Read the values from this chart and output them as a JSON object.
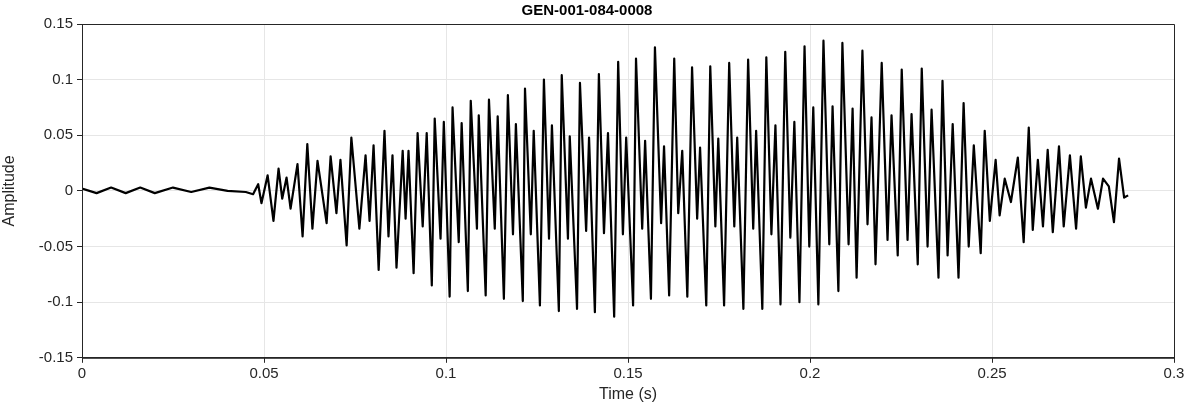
{
  "chart_data": {
    "type": "line",
    "title": "GEN-001-084-0008",
    "xlabel": "Time (s)",
    "ylabel": "Amplitude",
    "xlim": [
      0,
      0.3
    ],
    "xticks": [
      0,
      0.05,
      0.1,
      0.15,
      0.2,
      0.25,
      0.3
    ],
    "ylim": [
      -0.15,
      0.15
    ],
    "yticks": [
      -0.15,
      -0.1,
      -0.05,
      0,
      0.05,
      0.1,
      0.15
    ],
    "grid": true,
    "legend": false,
    "marker": "none",
    "line_style": "solid",
    "series": [
      {
        "color": "#000000",
        "x": [
          0,
          0.004,
          0.008,
          0.012,
          0.016,
          0.02,
          0.025,
          0.03,
          0.035,
          0.04,
          0.045,
          0.047,
          0.0484,
          0.0493,
          0.051,
          0.0526,
          0.054,
          0.055,
          0.0562,
          0.0573,
          0.0592,
          0.0606,
          0.0619,
          0.0633,
          0.0647,
          0.0672,
          0.0683,
          0.0699,
          0.071,
          0.0727,
          0.074,
          0.0762,
          0.0779,
          0.079,
          0.0801,
          0.0815,
          0.0831,
          0.0842,
          0.0853,
          0.0864,
          0.0881,
          0.0889,
          0.0897,
          0.0911,
          0.0922,
          0.0936,
          0.0947,
          0.0961,
          0.0969,
          0.0985,
          0.0994,
          0.101,
          0.1018,
          0.1035,
          0.1043,
          0.106,
          0.1068,
          0.1085,
          0.109,
          0.1109,
          0.1118,
          0.1134,
          0.1142,
          0.1159,
          0.117,
          0.1184,
          0.1192,
          0.1211,
          0.1217,
          0.1233,
          0.1241,
          0.1258,
          0.1269,
          0.1283,
          0.1291,
          0.131,
          0.1318,
          0.1335,
          0.134,
          0.136,
          0.1368,
          0.1385,
          0.1393,
          0.1409,
          0.142,
          0.1434,
          0.1445,
          0.1462,
          0.1473,
          0.1486,
          0.1495,
          0.1514,
          0.1522,
          0.1539,
          0.1547,
          0.1563,
          0.1574,
          0.1591,
          0.1599,
          0.1613,
          0.1627,
          0.1638,
          0.1649,
          0.1663,
          0.1676,
          0.169,
          0.1698,
          0.1715,
          0.1726,
          0.174,
          0.1748,
          0.1764,
          0.1778,
          0.1792,
          0.18,
          0.1817,
          0.183,
          0.1844,
          0.1852,
          0.1869,
          0.188,
          0.1894,
          0.1905,
          0.1919,
          0.1932,
          0.1946,
          0.1957,
          0.1971,
          0.1985,
          0.1998,
          0.2009,
          0.2023,
          0.2037,
          0.2053,
          0.2062,
          0.2078,
          0.2089,
          0.2106,
          0.2117,
          0.2128,
          0.2144,
          0.2158,
          0.2169,
          0.218,
          0.2197,
          0.2213,
          0.2224,
          0.2241,
          0.2252,
          0.2268,
          0.2279,
          0.2296,
          0.2307,
          0.2323,
          0.2334,
          0.2353,
          0.2364,
          0.2378,
          0.2392,
          0.2408,
          0.2422,
          0.2436,
          0.245,
          0.2469,
          0.248,
          0.2494,
          0.251,
          0.2521,
          0.2535,
          0.2552,
          0.2571,
          0.2587,
          0.2601,
          0.2612,
          0.2626,
          0.264,
          0.2653,
          0.2667,
          0.2684,
          0.2697,
          0.2714,
          0.2731,
          0.2744,
          0.2758,
          0.2772,
          0.2791,
          0.2805,
          0.2821,
          0.2835,
          0.2849,
          0.2863,
          0.2874
        ],
        "values": [
          0.002,
          -0.002,
          0.003,
          -0.002,
          0.003,
          -0.002,
          0.003,
          -0.001,
          0.003,
          0,
          -0.001,
          -0.003,
          0.006,
          -0.011,
          0.014,
          -0.027,
          0.02,
          -0.007,
          0.012,
          -0.016,
          0.024,
          -0.041,
          0.042,
          -0.034,
          0.027,
          -0.029,
          0.031,
          -0.02,
          0.028,
          -0.049,
          0.048,
          -0.034,
          0.032,
          -0.027,
          0.041,
          -0.071,
          0.054,
          -0.041,
          0.032,
          -0.069,
          0.036,
          -0.025,
          0.036,
          -0.074,
          0.052,
          -0.032,
          0.052,
          -0.085,
          0.065,
          -0.043,
          0.062,
          -0.095,
          0.075,
          -0.046,
          0.061,
          -0.09,
          0.081,
          -0.034,
          0.068,
          -0.094,
          0.082,
          -0.034,
          0.067,
          -0.097,
          0.086,
          -0.039,
          0.06,
          -0.099,
          0.092,
          -0.039,
          0.054,
          -0.103,
          0.1,
          -0.043,
          0.059,
          -0.108,
          0.104,
          -0.043,
          0.049,
          -0.106,
          0.097,
          -0.036,
          0.048,
          -0.109,
          0.105,
          -0.038,
          0.052,
          -0.113,
          0.116,
          -0.039,
          0.048,
          -0.103,
          0.119,
          -0.034,
          0.045,
          -0.097,
          0.129,
          -0.029,
          0.04,
          -0.094,
          0.119,
          -0.02,
          0.036,
          -0.095,
          0.111,
          -0.025,
          0.039,
          -0.103,
          0.112,
          -0.032,
          0.047,
          -0.103,
          0.115,
          -0.032,
          0.048,
          -0.106,
          0.118,
          -0.034,
          0.054,
          -0.106,
          0.12,
          -0.039,
          0.059,
          -0.102,
          0.125,
          -0.042,
          0.062,
          -0.1,
          0.13,
          -0.05,
          0.075,
          -0.102,
          0.135,
          -0.048,
          0.076,
          -0.09,
          0.133,
          -0.048,
          0.074,
          -0.078,
          0.126,
          -0.03,
          0.066,
          -0.066,
          0.115,
          -0.044,
          0.068,
          -0.058,
          0.109,
          -0.044,
          0.069,
          -0.066,
          0.11,
          -0.05,
          0.073,
          -0.078,
          0.099,
          -0.058,
          0.06,
          -0.078,
          0.079,
          -0.05,
          0.041,
          -0.056,
          0.054,
          -0.027,
          0.028,
          -0.022,
          0.011,
          -0.01,
          0.03,
          -0.046,
          0.057,
          -0.035,
          0.028,
          -0.032,
          0.037,
          -0.037,
          0.04,
          -0.032,
          0.032,
          -0.034,
          0.031,
          -0.015,
          0.011,
          -0.016,
          0.011,
          0.004,
          -0.028,
          0.029,
          -0.006,
          -0.004
        ]
      }
    ]
  }
}
